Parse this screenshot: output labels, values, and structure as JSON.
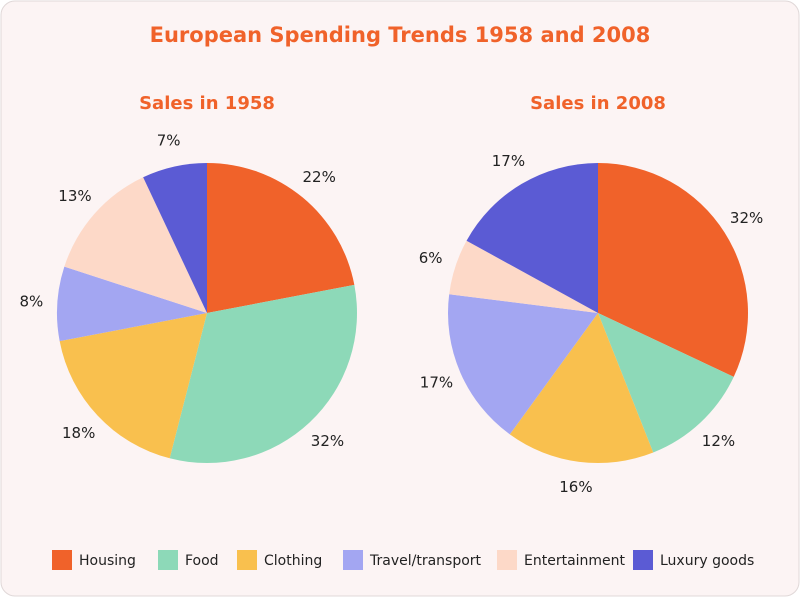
{
  "title": "European Spending Trends 1958 and 2008",
  "chart_data": [
    {
      "type": "pie",
      "title": "Sales in 1958",
      "categories": [
        "Housing",
        "Food",
        "Clothing",
        "Travel/transport",
        "Entertainment",
        "Luxury goods"
      ],
      "values": [
        22,
        32,
        18,
        8,
        13,
        7
      ],
      "value_labels": [
        "22%",
        "32%",
        "18%",
        "8%",
        "13%",
        "7%"
      ],
      "colors": [
        "#f0622a",
        "#8dd9b8",
        "#f9c04e",
        "#a3a6f2",
        "#fdd9c8",
        "#5b5bd4"
      ]
    },
    {
      "type": "pie",
      "title": "Sales in 2008",
      "categories": [
        "Housing",
        "Food",
        "Clothing",
        "Travel/transport",
        "Entertainment",
        "Luxury goods"
      ],
      "values": [
        32,
        12,
        16,
        17,
        6,
        17
      ],
      "value_labels": [
        "32%",
        "12%",
        "16%",
        "17%",
        "6%",
        "17%"
      ],
      "colors": [
        "#f0622a",
        "#8dd9b8",
        "#f9c04e",
        "#a3a6f2",
        "#fdd9c8",
        "#5b5bd4"
      ]
    }
  ]
}
